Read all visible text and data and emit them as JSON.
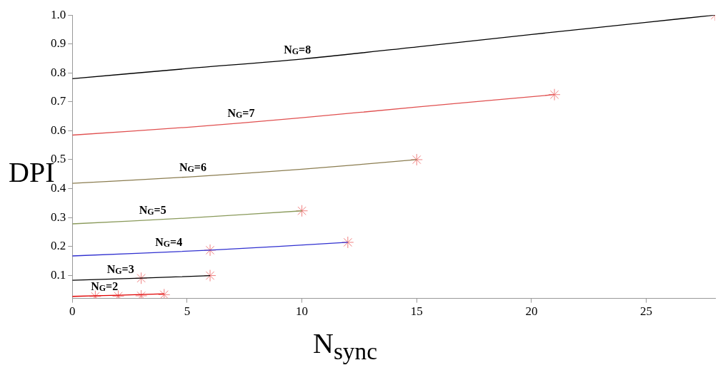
{
  "chart_data": {
    "type": "line",
    "xlabel": "N$_{sync}$",
    "ylabel": "DPI",
    "xlim": [
      0,
      28
    ],
    "xticks": [
      0,
      5,
      10,
      15,
      20,
      25
    ],
    "ylim": [
      0.02,
      1.0
    ],
    "yticks": [
      {
        "value": 0.1,
        "label": "0.1"
      },
      {
        "value": 0.2,
        "label": "0.2"
      },
      {
        "value": 0.3,
        "label": "0.3"
      },
      {
        "value": 0.4,
        "label": "0.4"
      },
      {
        "value": 0.5,
        "label": "0.5"
      },
      {
        "value": 0.6,
        "label": "0.6"
      },
      {
        "value": 0.7,
        "label": "0.7"
      },
      {
        "value": 0.8,
        "label": "0.8"
      },
      {
        "value": 0.9,
        "label": "0.9"
      },
      {
        "value": 1.0,
        "label": "1.0"
      }
    ],
    "marker": "none",
    "series": [
      {
        "name": "N$_{G}$=8",
        "color": "#000000",
        "x": [
          0,
          5,
          10,
          15,
          20,
          25,
          28
        ],
        "values": [
          0.78,
          0.815,
          0.848,
          0.89,
          0.933,
          0.975,
          1.0
        ]
      },
      {
        "name": "N$_{G}$=7",
        "color": "#e05050",
        "x": [
          0,
          5,
          10,
          15,
          21
        ],
        "values": [
          0.585,
          0.612,
          0.645,
          0.682,
          0.725
        ]
      },
      {
        "name": "N$_{G}$=6",
        "color": "#8b7d50",
        "x": [
          0,
          5,
          10,
          15
        ],
        "values": [
          0.418,
          0.44,
          0.467,
          0.5
        ]
      },
      {
        "name": "N$_{G}$=5",
        "color": "#8a9a5b",
        "x": [
          0,
          5,
          10
        ],
        "values": [
          0.278,
          0.298,
          0.323
        ]
      },
      {
        "name": "N$_{G}$=4",
        "color": "#3030d0",
        "x": [
          0,
          6,
          12
        ],
        "values": [
          0.167,
          0.187,
          0.214
        ]
      },
      {
        "name": "N$_{G}$=3",
        "color": "#000000",
        "x": [
          0,
          3,
          6
        ],
        "values": [
          0.083,
          0.09,
          0.099
        ]
      },
      {
        "name": "N$_{G}$=2",
        "color": "#e00000",
        "x": [
          0,
          2,
          4
        ],
        "values": [
          0.027,
          0.031,
          0.036
        ]
      },
      {
        "type": "scatter",
        "marker": "cross",
        "color": "#f08080",
        "x": [
          28,
          21,
          15,
          10,
          12,
          6,
          6,
          3,
          1,
          2,
          3,
          4
        ],
        "values": [
          1.0,
          0.725,
          0.5,
          0.323,
          0.214,
          0.187,
          0.099,
          0.09,
          0.027,
          0.028,
          0.029,
          0.033
        ]
      }
    ]
  }
}
